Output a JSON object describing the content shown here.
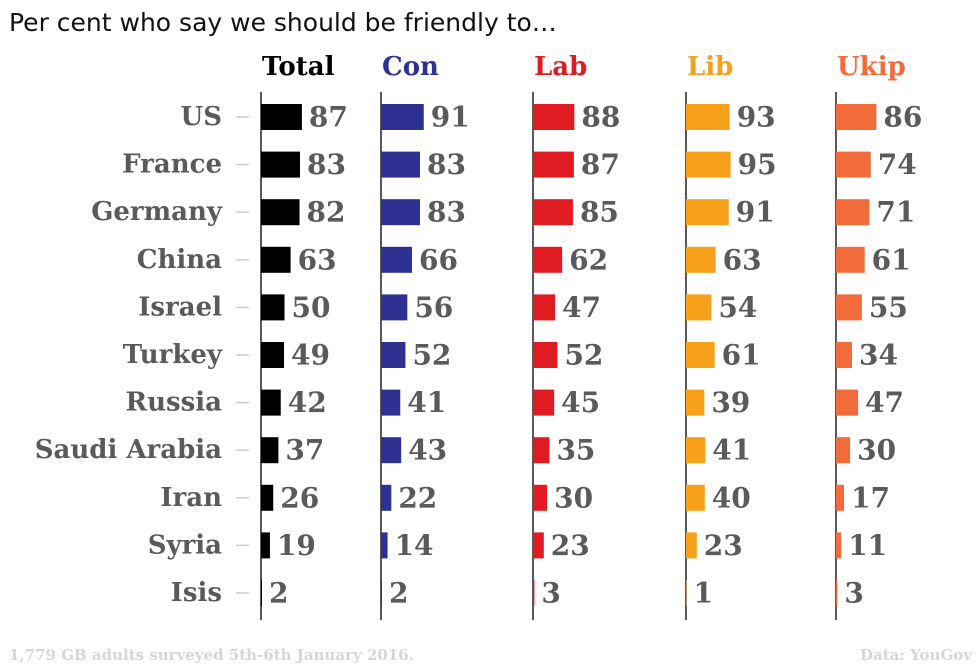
{
  "title": "Per cent who say we should be friendly to…",
  "footnote": "1,779 GB adults surveyed 5th-6th January 2016.",
  "source": "Data: YouGov",
  "colors": {
    "Total": "#000000",
    "Con": "#2e3192",
    "Lab": "#e01b22",
    "Lib": "#f7a11a",
    "Ukip": "#f26b3a",
    "label": "#5a5a5a",
    "axis": "#222222",
    "tick": "#cccccc"
  },
  "chart_data": {
    "type": "bar",
    "orientation": "horizontal",
    "layout": "small-multiples",
    "categories": [
      "US",
      "France",
      "Germany",
      "China",
      "Israel",
      "Turkey",
      "Russia",
      "Saudi Arabia",
      "Iran",
      "Syria",
      "Isis"
    ],
    "series": [
      {
        "name": "Total",
        "values": [
          87,
          83,
          82,
          63,
          50,
          49,
          42,
          37,
          26,
          19,
          2
        ]
      },
      {
        "name": "Con",
        "values": [
          91,
          83,
          83,
          66,
          56,
          52,
          41,
          43,
          22,
          14,
          2
        ]
      },
      {
        "name": "Lab",
        "values": [
          88,
          87,
          85,
          62,
          47,
          52,
          45,
          35,
          30,
          23,
          3
        ]
      },
      {
        "name": "Lib",
        "values": [
          93,
          95,
          91,
          63,
          54,
          61,
          39,
          41,
          40,
          23,
          1
        ]
      },
      {
        "name": "Ukip",
        "values": [
          86,
          74,
          71,
          61,
          55,
          34,
          47,
          30,
          17,
          11,
          3
        ]
      }
    ],
    "xlim": [
      0,
      100
    ],
    "data_labels": true,
    "grid": false
  }
}
